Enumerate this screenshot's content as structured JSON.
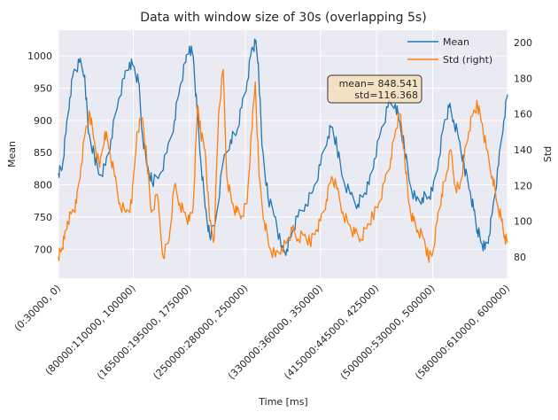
{
  "chart_data": {
    "type": "line",
    "title": "Data with window size of 30s (overlapping 5s)",
    "xlabel": "Time [ms]",
    "ylabel_left": "Mean",
    "ylabel_right": "Std",
    "x_tick_labels": [
      "(0:30000, 0)",
      "(80000:110000, 100000)",
      "(165000:195000, 175000)",
      "(250000:280000, 250000)",
      "(330000:360000, 350000)",
      "(415000:445000, 425000)",
      "(500000:530000, 500000)",
      "(580000:610000, 600000)"
    ],
    "x_tick_positions": [
      0,
      100000,
      175000,
      250000,
      350000,
      425000,
      500000,
      600000
    ],
    "xlim": [
      0,
      600000
    ],
    "ylim_left": [
      655,
      1040
    ],
    "ylim_right": [
      68,
      207
    ],
    "yticks_left": [
      700,
      750,
      800,
      850,
      900,
      950,
      1000
    ],
    "yticks_right": [
      80,
      100,
      120,
      140,
      160,
      180,
      200
    ],
    "grid": true,
    "legend_position": "upper right",
    "annotation": {
      "line1": "mean= 848.541",
      "line2": "std=116.368"
    },
    "series": [
      {
        "name": "Mean",
        "axis": "left",
        "color": "#1f77b4",
        "points": [
          [
            0,
            818
          ],
          [
            5000,
            825
          ],
          [
            10000,
            880
          ],
          [
            15000,
            935
          ],
          [
            20000,
            975
          ],
          [
            28000,
            990
          ],
          [
            35000,
            970
          ],
          [
            40000,
            880
          ],
          [
            48000,
            845
          ],
          [
            55000,
            815
          ],
          [
            63000,
            830
          ],
          [
            70000,
            870
          ],
          [
            80000,
            930
          ],
          [
            88000,
            965
          ],
          [
            95000,
            990
          ],
          [
            100000,
            985
          ],
          [
            107000,
            960
          ],
          [
            112000,
            880
          ],
          [
            118000,
            830
          ],
          [
            125000,
            805
          ],
          [
            135000,
            815
          ],
          [
            145000,
            850
          ],
          [
            155000,
            900
          ],
          [
            162000,
            950
          ],
          [
            170000,
            990
          ],
          [
            175000,
            1015
          ],
          [
            180000,
            1000
          ],
          [
            185000,
            920
          ],
          [
            190000,
            840
          ],
          [
            196000,
            765
          ],
          [
            202000,
            720
          ],
          [
            210000,
            745
          ],
          [
            220000,
            835
          ],
          [
            230000,
            870
          ],
          [
            238000,
            880
          ],
          [
            245000,
            920
          ],
          [
            252000,
            960
          ],
          [
            258000,
            1010
          ],
          [
            263000,
            1020
          ],
          [
            267000,
            990
          ],
          [
            272000,
            860
          ],
          [
            280000,
            780
          ],
          [
            290000,
            750
          ],
          [
            298000,
            700
          ],
          [
            305000,
            700
          ],
          [
            312000,
            725
          ],
          [
            320000,
            750
          ],
          [
            330000,
            770
          ],
          [
            340000,
            790
          ],
          [
            350000,
            830
          ],
          [
            360000,
            875
          ],
          [
            365000,
            890
          ],
          [
            372000,
            860
          ],
          [
            380000,
            810
          ],
          [
            390000,
            785
          ],
          [
            400000,
            770
          ],
          [
            408000,
            785
          ],
          [
            415000,
            800
          ],
          [
            422000,
            840
          ],
          [
            430000,
            880
          ],
          [
            440000,
            920
          ],
          [
            450000,
            925
          ],
          [
            455000,
            900
          ],
          [
            462000,
            860
          ],
          [
            470000,
            800
          ],
          [
            478000,
            775
          ],
          [
            486000,
            780
          ],
          [
            494000,
            780
          ],
          [
            500000,
            790
          ],
          [
            508000,
            840
          ],
          [
            515000,
            895
          ],
          [
            522000,
            920
          ],
          [
            528000,
            900
          ],
          [
            535000,
            870
          ],
          [
            542000,
            830
          ],
          [
            550000,
            790
          ],
          [
            555000,
            760
          ],
          [
            560000,
            730
          ],
          [
            565000,
            710
          ],
          [
            570000,
            700
          ],
          [
            575000,
            720
          ],
          [
            580000,
            760
          ],
          [
            588000,
            830
          ],
          [
            595000,
            900
          ],
          [
            600000,
            940
          ]
        ]
      },
      {
        "name": "Std (right)",
        "axis": "right",
        "color": "#ff7f0e",
        "points": [
          [
            0,
            80
          ],
          [
            4000,
            84
          ],
          [
            8000,
            90
          ],
          [
            12000,
            100
          ],
          [
            18000,
            105
          ],
          [
            24000,
            110
          ],
          [
            30000,
            130
          ],
          [
            36000,
            150
          ],
          [
            42000,
            160
          ],
          [
            48000,
            145
          ],
          [
            55000,
            130
          ],
          [
            62000,
            150
          ],
          [
            68000,
            140
          ],
          [
            75000,
            125
          ],
          [
            82000,
            110
          ],
          [
            90000,
            105
          ],
          [
            98000,
            110
          ],
          [
            105000,
            150
          ],
          [
            112000,
            158
          ],
          [
            118000,
            135
          ],
          [
            124000,
            105
          ],
          [
            132000,
            115
          ],
          [
            140000,
            80
          ],
          [
            148000,
            90
          ],
          [
            155000,
            120
          ],
          [
            162000,
            110
          ],
          [
            168000,
            105
          ],
          [
            175000,
            100
          ],
          [
            180000,
            108
          ],
          [
            186000,
            165
          ],
          [
            190000,
            150
          ],
          [
            196000,
            140
          ],
          [
            202000,
            100
          ],
          [
            208000,
            90
          ],
          [
            214000,
            160
          ],
          [
            220000,
            185
          ],
          [
            225000,
            125
          ],
          [
            232000,
            110
          ],
          [
            238000,
            105
          ],
          [
            245000,
            103
          ],
          [
            252000,
            110
          ],
          [
            258000,
            150
          ],
          [
            263000,
            178
          ],
          [
            268000,
            125
          ],
          [
            275000,
            100
          ],
          [
            282000,
            85
          ],
          [
            290000,
            80
          ],
          [
            298000,
            85
          ],
          [
            305000,
            88
          ],
          [
            312000,
            95
          ],
          [
            320000,
            90
          ],
          [
            328000,
            92
          ],
          [
            336000,
            88
          ],
          [
            344000,
            95
          ],
          [
            350000,
            100
          ],
          [
            358000,
            112
          ],
          [
            365000,
            125
          ],
          [
            372000,
            118
          ],
          [
            380000,
            105
          ],
          [
            388000,
            98
          ],
          [
            396000,
            93
          ],
          [
            404000,
            90
          ],
          [
            412000,
            96
          ],
          [
            420000,
            103
          ],
          [
            428000,
            110
          ],
          [
            436000,
            122
          ],
          [
            444000,
            135
          ],
          [
            450000,
            150
          ],
          [
            456000,
            160
          ],
          [
            462000,
            140
          ],
          [
            468000,
            110
          ],
          [
            474000,
            100
          ],
          [
            480000,
            95
          ],
          [
            488000,
            90
          ],
          [
            494000,
            80
          ],
          [
            500000,
            82
          ],
          [
            506000,
            100
          ],
          [
            512000,
            115
          ],
          [
            518000,
            125
          ],
          [
            524000,
            140
          ],
          [
            530000,
            120
          ],
          [
            536000,
            118
          ],
          [
            542000,
            135
          ],
          [
            548000,
            150
          ],
          [
            554000,
            160
          ],
          [
            560000,
            165
          ],
          [
            566000,
            155
          ],
          [
            572000,
            140
          ],
          [
            580000,
            125
          ],
          [
            586000,
            110
          ],
          [
            592000,
            100
          ],
          [
            596000,
            92
          ],
          [
            600000,
            88
          ]
        ]
      }
    ]
  }
}
